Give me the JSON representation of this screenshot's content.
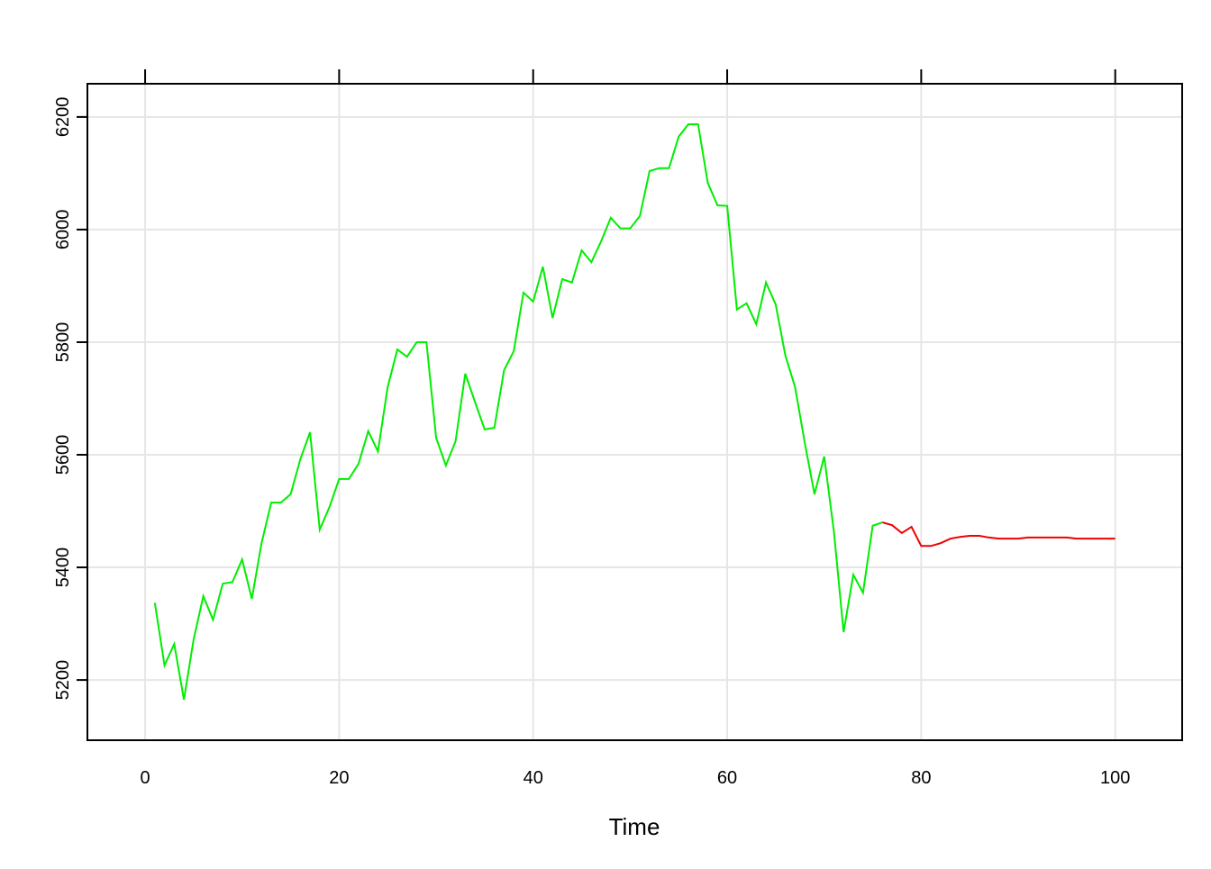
{
  "chart_data": {
    "type": "line",
    "xlabel": "Time",
    "x": [
      1,
      2,
      3,
      4,
      5,
      6,
      7,
      8,
      9,
      10,
      11,
      12,
      13,
      14,
      15,
      16,
      17,
      18,
      19,
      20,
      21,
      22,
      23,
      24,
      25,
      26,
      27,
      28,
      29,
      30,
      31,
      32,
      33,
      34,
      35,
      36,
      37,
      38,
      39,
      40,
      41,
      42,
      43,
      44,
      45,
      46,
      47,
      48,
      49,
      50,
      51,
      52,
      53,
      54,
      55,
      56,
      57,
      58,
      59,
      60,
      61,
      62,
      63,
      64,
      65,
      66,
      67,
      68,
      69,
      70,
      71,
      72,
      73,
      74,
      75,
      76,
      77,
      78,
      79,
      80,
      81,
      82,
      83,
      84,
      85,
      86,
      87,
      88,
      89,
      90,
      91,
      92,
      93,
      94,
      95,
      96,
      97,
      98,
      99,
      100
    ],
    "series": [
      {
        "color": "#00ee00",
        "values": [
          5337,
          5226,
          5264,
          5165,
          5272,
          5349,
          5307,
          5371,
          5374,
          5414,
          5344,
          5443,
          5515,
          5515,
          5530,
          5592,
          5640,
          5467,
          5507,
          5557,
          5557,
          5584,
          5642,
          5606,
          5720,
          5787,
          5774,
          5800,
          5800,
          5630,
          5581,
          5624,
          5744,
          5694,
          5645,
          5648,
          5750,
          5784,
          5888,
          5872,
          5934,
          5843,
          5912,
          5906,
          5963,
          5942,
          5979,
          6021,
          6002,
          6002,
          6024,
          6104,
          6109,
          6109,
          6165,
          6187,
          6187,
          6083,
          6043,
          6042,
          5858,
          5869,
          5832,
          5906,
          5867,
          5776,
          5720,
          5621,
          5530,
          5597,
          5464,
          5285,
          5387,
          5355,
          5474,
          5480,
          null,
          null,
          null,
          null,
          null,
          null,
          null,
          null,
          null,
          null,
          null,
          null,
          null,
          null,
          null,
          null,
          null,
          null,
          null,
          null,
          null,
          null,
          null,
          null
        ]
      },
      {
        "color": "#ee0000",
        "values": [
          null,
          null,
          null,
          null,
          null,
          null,
          null,
          null,
          null,
          null,
          null,
          null,
          null,
          null,
          null,
          null,
          null,
          null,
          null,
          null,
          null,
          null,
          null,
          null,
          null,
          null,
          null,
          null,
          null,
          null,
          null,
          null,
          null,
          null,
          null,
          null,
          null,
          null,
          null,
          null,
          null,
          null,
          null,
          null,
          null,
          null,
          null,
          null,
          null,
          null,
          null,
          null,
          null,
          null,
          null,
          null,
          null,
          null,
          null,
          null,
          null,
          null,
          null,
          null,
          null,
          null,
          null,
          null,
          null,
          null,
          null,
          null,
          null,
          null,
          null,
          5480,
          5475,
          5461,
          5472,
          5438,
          5438,
          5443,
          5451,
          5454,
          5456,
          5456,
          5453,
          5451,
          5451,
          5451,
          5453,
          5453,
          5453,
          5453,
          5453,
          5451,
          5451,
          5451,
          5451,
          5451
        ]
      }
    ],
    "xlim": [
      -5.95,
      106.9
    ],
    "ylim": [
      5093,
      6259
    ],
    "xticks": [
      0,
      20,
      40,
      60,
      80,
      100
    ],
    "yticks": [
      5200,
      5400,
      5600,
      5800,
      6000,
      6200
    ],
    "grid": true
  }
}
